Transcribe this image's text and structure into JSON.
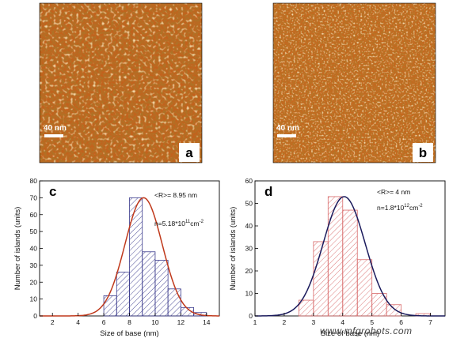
{
  "panels": {
    "a": {
      "letter": "a",
      "scale_label": "40 nm"
    },
    "b": {
      "letter": "b",
      "scale_label": "40 nm"
    }
  },
  "colors": {
    "afm_dark": "#6a2a05",
    "afm_mid": "#c4601b",
    "afm_light": "#f6c276",
    "hist_c_bars": "#3a3a8c",
    "fit_c": "#c0391b",
    "hist_d_bars": "#d86a6a",
    "fit_d": "#1a1a5c"
  },
  "watermark": "www.mfgrobots.com",
  "chart_data": [
    {
      "type": "bar",
      "panel_letter": "c",
      "annotation_r": "<R>= 8.95 nm",
      "annotation_n": "n=5.18*10",
      "annotation_n_exp": "11",
      "annotation_unit": "cm",
      "annotation_unit_exp": "-2",
      "xlabel": "Size of base (nm)",
      "ylabel": "Number of islands (units)",
      "xlim": [
        1,
        15
      ],
      "ylim": [
        0,
        80
      ],
      "xticks": [
        2,
        4,
        6,
        8,
        10,
        12,
        14
      ],
      "yticks": [
        0,
        10,
        20,
        30,
        40,
        50,
        60,
        70,
        80
      ],
      "bin_width": 1,
      "bins": [
        {
          "x": 6.5,
          "value": 12
        },
        {
          "x": 7.5,
          "value": 26
        },
        {
          "x": 8.5,
          "value": 70
        },
        {
          "x": 9.5,
          "value": 38
        },
        {
          "x": 10.5,
          "value": 33
        },
        {
          "x": 11.5,
          "value": 16
        },
        {
          "x": 12.5,
          "value": 5
        },
        {
          "x": 13.5,
          "value": 2
        }
      ],
      "fit": {
        "type": "gaussian",
        "mean": 9.1,
        "sigma": 1.45,
        "amplitude": 70
      }
    },
    {
      "type": "bar",
      "panel_letter": "d",
      "annotation_r": "<R>= 4 nm",
      "annotation_n": "n=1.8*10",
      "annotation_n_exp": "12",
      "annotation_unit": "cm",
      "annotation_unit_exp": "-2",
      "xlabel": "Size of base (nm)",
      "ylabel": "Number of islands (units)",
      "xlim": [
        1,
        7.5
      ],
      "ylim": [
        0,
        60
      ],
      "xticks": [
        1,
        2,
        3,
        4,
        5,
        6,
        7
      ],
      "yticks": [
        0,
        10,
        20,
        30,
        40,
        50,
        60
      ],
      "bin_width": 0.5,
      "bins": [
        {
          "x": 2.75,
          "value": 7
        },
        {
          "x": 3.25,
          "value": 33
        },
        {
          "x": 3.75,
          "value": 53
        },
        {
          "x": 4.25,
          "value": 47
        },
        {
          "x": 4.75,
          "value": 25
        },
        {
          "x": 5.25,
          "value": 10
        },
        {
          "x": 5.75,
          "value": 5
        },
        {
          "x": 6.75,
          "value": 1
        }
      ],
      "fit": {
        "type": "gaussian",
        "mean": 4.05,
        "sigma": 0.72,
        "amplitude": 53
      }
    }
  ]
}
